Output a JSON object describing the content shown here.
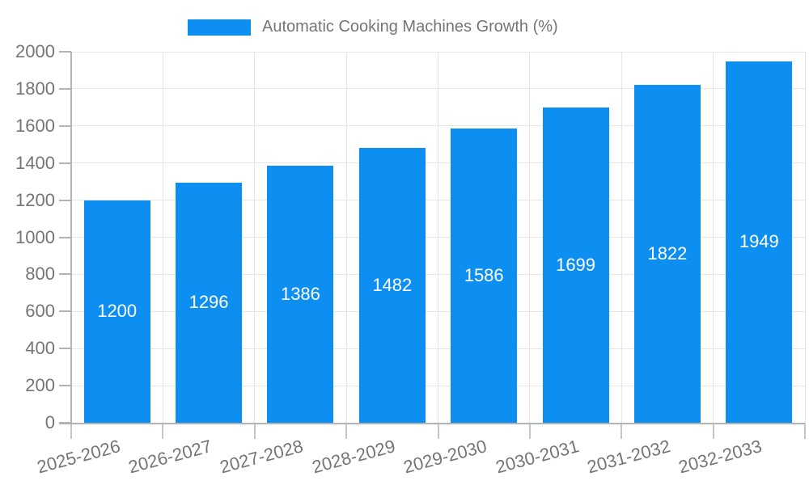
{
  "legend": {
    "label": "Automatic Cooking Machines Growth (%)"
  },
  "chart_data": {
    "type": "bar",
    "title": "Automatic Cooking Machines Growth (%)",
    "categories": [
      "2025-2026",
      "2026-2027",
      "2027-2028",
      "2028-2029",
      "2029-2030",
      "2030-2031",
      "2031-2032",
      "2032-2033"
    ],
    "values": [
      1200,
      1296,
      1386,
      1482,
      1586,
      1699,
      1822,
      1949
    ],
    "bar_labels": [
      "1200",
      "1296",
      "1386",
      "1482",
      "1586",
      "1699",
      "1822",
      "1949"
    ],
    "xlabel": "",
    "ylabel": "",
    "ylim": [
      0,
      2000
    ],
    "ytick_step": 200,
    "grid": true,
    "legend_position": "top",
    "colors": {
      "bar": "#0d8ff2",
      "bar_label": "#ffffff",
      "axis_text": "#757575",
      "gridline": "#e6e6e6",
      "axis_line": "#b3b3b3"
    }
  }
}
